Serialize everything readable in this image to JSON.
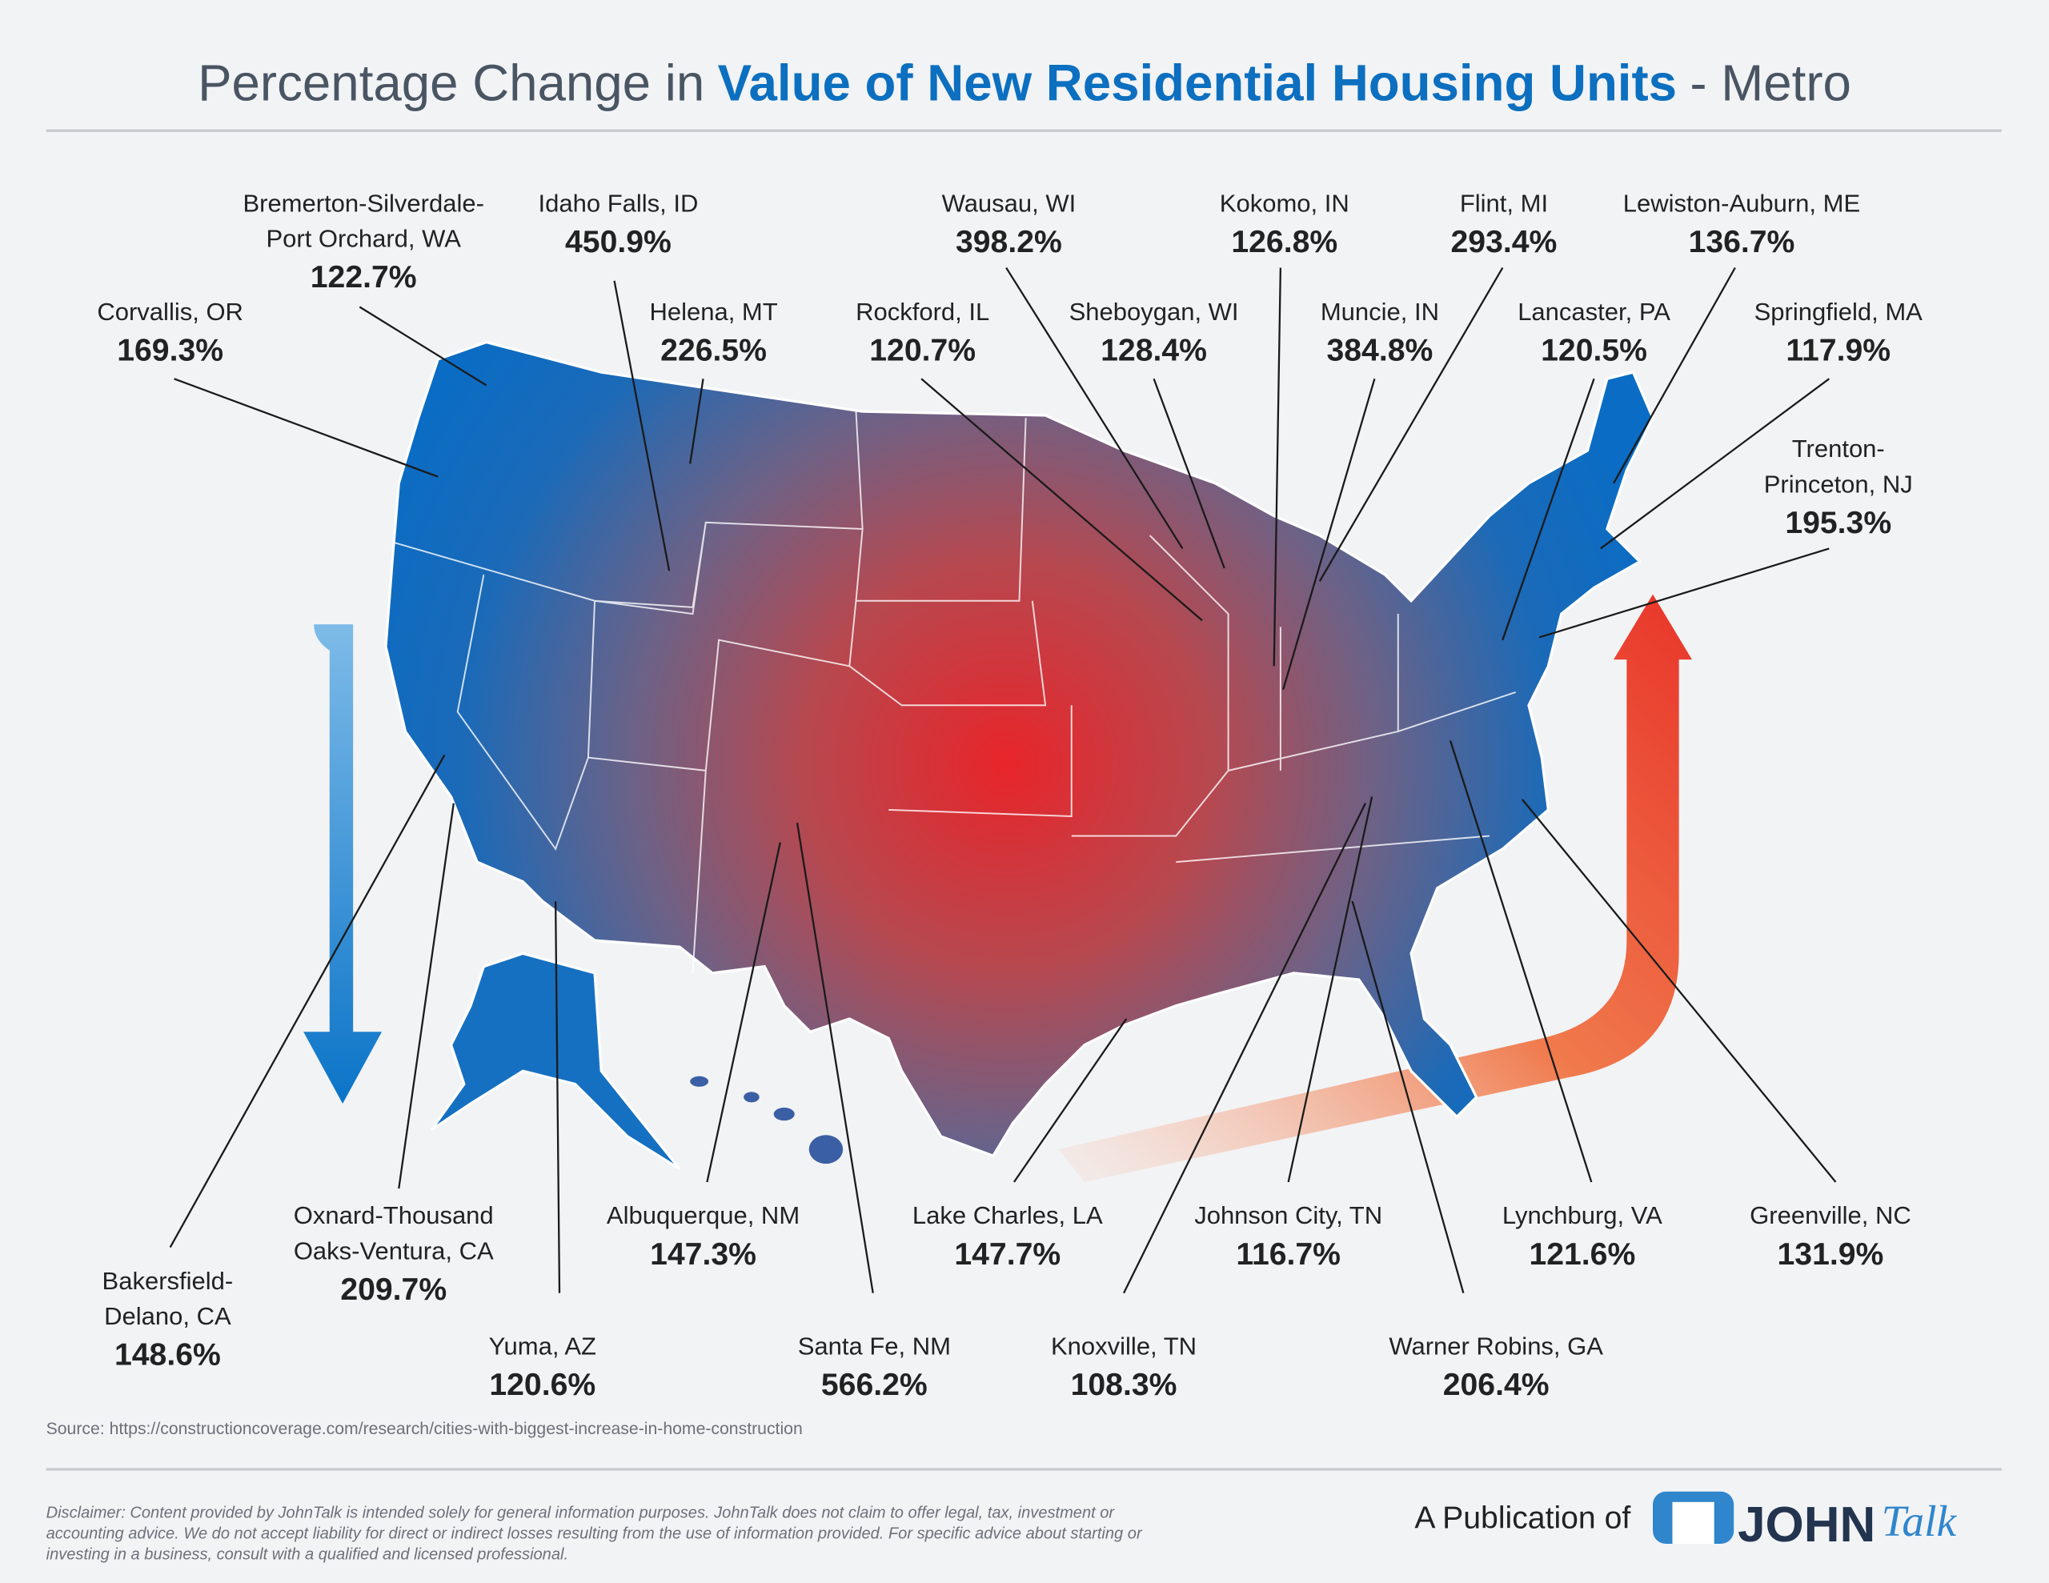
{
  "header": {
    "title": {
      "lead": "Percentage Change in",
      "emphasis": "Value of New Residential Housing Units",
      "tail": "- Metro"
    }
  },
  "labels": [
    {
      "name": [
        "Corvallis, OR"
      ],
      "value": "169.3%"
    },
    {
      "name": [
        "Bremerton-Silverdale-",
        "Port Orchard, WA"
      ],
      "value": "122.7%"
    },
    {
      "name": [
        "Idaho Falls, ID"
      ],
      "value": "450.9%"
    },
    {
      "name": [
        "Helena, MT"
      ],
      "value": "226.5%"
    },
    {
      "name": [
        "Wausau, WI"
      ],
      "value": "398.2%"
    },
    {
      "name": [
        "Rockford, IL"
      ],
      "value": "120.7%"
    },
    {
      "name": [
        "Sheboygan, WI"
      ],
      "value": "128.4%"
    },
    {
      "name": [
        "Kokomo, IN"
      ],
      "value": "126.8%"
    },
    {
      "name": [
        "Flint, MI"
      ],
      "value": "293.4%"
    },
    {
      "name": [
        "Muncie, IN"
      ],
      "value": "384.8%"
    },
    {
      "name": [
        "Lewiston-Auburn, ME"
      ],
      "value": "136.7%"
    },
    {
      "name": [
        "Lancaster, PA"
      ],
      "value": "120.5%"
    },
    {
      "name": [
        "Springfield, MA"
      ],
      "value": "117.9%"
    },
    {
      "name": [
        "Trenton-",
        "Princeton, NJ"
      ],
      "value": "195.3%"
    },
    {
      "name": [
        "Bakersfield-",
        "Delano, CA"
      ],
      "value": "148.6%"
    },
    {
      "name": [
        "Oxnard-Thousand",
        "Oaks-Ventura, CA"
      ],
      "value": "209.7%"
    },
    {
      "name": [
        "Yuma, AZ"
      ],
      "value": "120.6%"
    },
    {
      "name": [
        "Albuquerque, NM"
      ],
      "value": "147.3%"
    },
    {
      "name": [
        "Santa Fe, NM"
      ],
      "value": "566.2%"
    },
    {
      "name": [
        "Lake Charles, LA"
      ],
      "value": "147.7%"
    },
    {
      "name": [
        "Knoxville, TN"
      ],
      "value": "108.3%"
    },
    {
      "name": [
        "Johnson City, TN"
      ],
      "value": "116.7%"
    },
    {
      "name": [
        "Warner Robins, GA"
      ],
      "value": "206.4%"
    },
    {
      "name": [
        "Lynchburg, VA"
      ],
      "value": "121.6%"
    },
    {
      "name": [
        "Greenville, NC"
      ],
      "value": "131.9%"
    }
  ],
  "source": "Source: https://constructioncoverage.com/research/cities-with-biggest-increase-in-home-construction",
  "disclaimer": [
    "Disclaimer: Content provided by JohnTalk is intended solely for general information purposes. JohnTalk does not claim to offer legal, tax, investment or",
    "accounting advice. We do not accept liability for direct or indirect losses resulting from the use of information provided. For specific advice about starting or",
    "investing in a business, consult with a qualified and licensed professional."
  ],
  "publisher": {
    "prefix": "A Publication of",
    "logo_main": "JOHN",
    "logo_script": "Talk"
  }
}
